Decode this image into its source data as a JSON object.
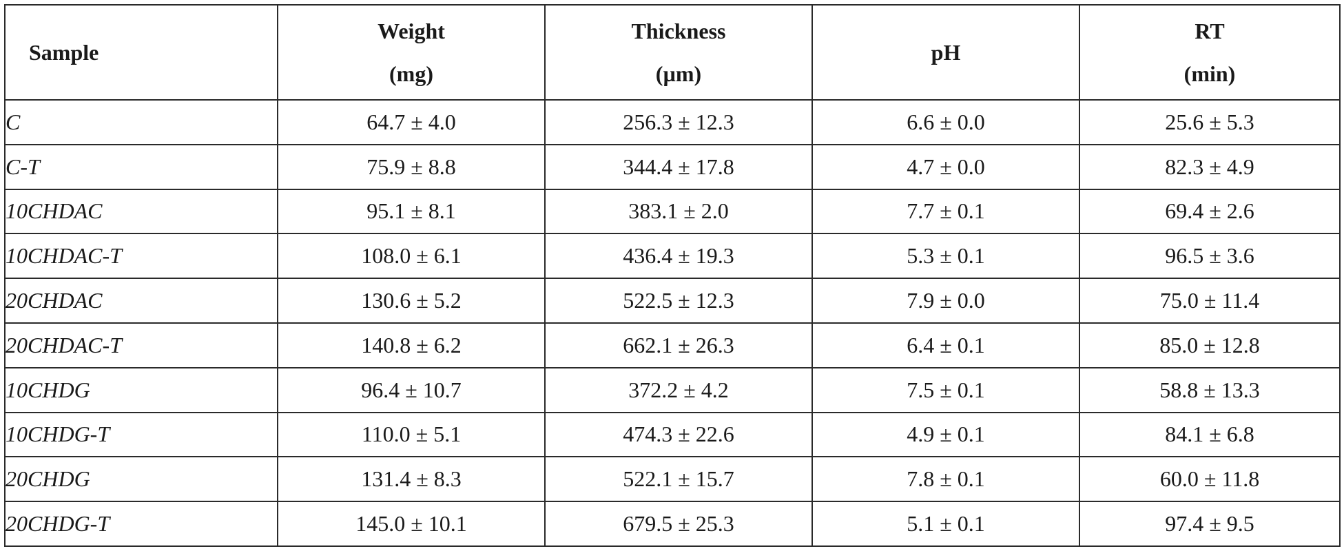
{
  "table": {
    "headers": [
      {
        "label": "Sample",
        "unit": ""
      },
      {
        "label": "Weight",
        "unit": "(mg)"
      },
      {
        "label": "Thickness",
        "unit": "(µm)"
      },
      {
        "label": "pH",
        "unit": ""
      },
      {
        "label": "RT",
        "unit": "(min)"
      }
    ],
    "rows": [
      {
        "sample": "C",
        "weight": "64.7 ± 4.0",
        "thickness": "256.3 ± 12.3",
        "ph": "6.6 ± 0.0",
        "rt": "25.6 ± 5.3"
      },
      {
        "sample": "C-T",
        "weight": "75.9 ± 8.8",
        "thickness": "344.4 ± 17.8",
        "ph": "4.7 ± 0.0",
        "rt": "82.3 ± 4.9"
      },
      {
        "sample": "10CHDAC",
        "weight": "95.1 ± 8.1",
        "thickness": "383.1 ± 2.0",
        "ph": "7.7 ± 0.1",
        "rt": "69.4 ± 2.6"
      },
      {
        "sample": "10CHDAC-T",
        "weight": "108.0 ± 6.1",
        "thickness": "436.4 ± 19.3",
        "ph": "5.3 ± 0.1",
        "rt": "96.5 ± 3.6"
      },
      {
        "sample": "20CHDAC",
        "weight": "130.6 ± 5.2",
        "thickness": "522.5 ± 12.3",
        "ph": "7.9 ± 0.0",
        "rt": "75.0 ± 11.4"
      },
      {
        "sample": "20CHDAC-T",
        "weight": "140.8 ± 6.2",
        "thickness": "662.1 ± 26.3",
        "ph": "6.4 ± 0.1",
        "rt": "85.0 ± 12.8"
      },
      {
        "sample": "10CHDG",
        "weight": "96.4 ± 10.7",
        "thickness": "372.2 ± 4.2",
        "ph": "7.5 ± 0.1",
        "rt": "58.8 ± 13.3"
      },
      {
        "sample": "10CHDG-T",
        "weight": "110.0 ± 5.1",
        "thickness": "474.3 ± 22.6",
        "ph": "4.9 ± 0.1",
        "rt": "84.1 ± 6.8"
      },
      {
        "sample": "20CHDG",
        "weight": "131.4 ± 8.3",
        "thickness": "522.1 ± 15.7",
        "ph": "7.8 ± 0.1",
        "rt": "60.0 ± 11.8"
      },
      {
        "sample": "20CHDG-T",
        "weight": "145.0 ± 10.1",
        "thickness": "679.5 ± 25.3",
        "ph": "5.1 ± 0.1",
        "rt": "97.4 ± 9.5"
      }
    ]
  }
}
